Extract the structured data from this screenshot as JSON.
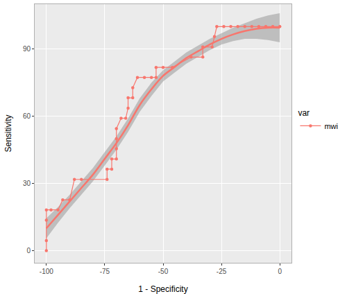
{
  "chart_data": {
    "type": "line",
    "x_label": "1 - Specificity",
    "y_label": "Sensitivity",
    "legend_title": "var",
    "legend": "right",
    "grid": true,
    "xlim": [
      -105,
      5
    ],
    "ylim": [
      -5.4,
      110
    ],
    "xticks": [
      -100,
      -75,
      -50,
      -25,
      0
    ],
    "yticks": [
      0,
      30,
      60,
      90
    ],
    "series": [
      {
        "name": "mwi",
        "color": "#F8766D",
        "marker": "circle",
        "line_style": "step",
        "x": [
          -100,
          -100,
          -100,
          -100,
          -98,
          -95,
          -93,
          -90,
          -88,
          -85,
          -74,
          -74,
          -72,
          -72,
          -70,
          -70,
          -70,
          -70,
          -68,
          -66,
          -65,
          -65,
          -63,
          -63,
          -61,
          -58,
          -55,
          -53,
          -53,
          -50,
          -46,
          -38,
          -33,
          -33,
          -29,
          -28,
          -27,
          -24,
          -21,
          -18,
          -15,
          -12,
          -9,
          -6,
          -3,
          0
        ],
        "values": [
          0,
          4.5,
          13.6,
          18.2,
          18.2,
          18.2,
          22.7,
          22.7,
          31.8,
          31.8,
          31.8,
          36.4,
          36.4,
          40.9,
          40.9,
          45.5,
          50,
          54.5,
          59.1,
          59.1,
          63.6,
          68.2,
          68.2,
          72.7,
          77.3,
          77.3,
          77.3,
          77.3,
          81.8,
          81.8,
          81.8,
          86.4,
          86.4,
          90.9,
          90.9,
          95.5,
          100,
          100,
          100,
          100,
          100,
          100,
          100,
          100,
          100,
          100
        ],
        "fit": {
          "x": [
            -100,
            -95,
            -90,
            -85,
            -80,
            -75,
            -70,
            -65,
            -60,
            -55,
            -50,
            -45,
            -40,
            -35,
            -30,
            -25,
            -20,
            -15,
            -10,
            -5,
            0
          ],
          "values": [
            10,
            16,
            22,
            28,
            34,
            41,
            48,
            56,
            65,
            72,
            78,
            82,
            86,
            89,
            92,
            94.5,
            96.5,
            98,
            99,
            99.5,
            99.5
          ],
          "lower": [
            5.5,
            12.5,
            19,
            25,
            31,
            38,
            45,
            53,
            62,
            69,
            75.5,
            79.5,
            83.5,
            86.5,
            89.5,
            92,
            93.5,
            94.5,
            94.5,
            94,
            93
          ],
          "upper": [
            14.5,
            19.5,
            25,
            31,
            37,
            44,
            51,
            59,
            68,
            75,
            80.5,
            84.5,
            88.5,
            91.5,
            94.5,
            97,
            99.5,
            101.5,
            103.5,
            105,
            106
          ]
        }
      }
    ]
  }
}
